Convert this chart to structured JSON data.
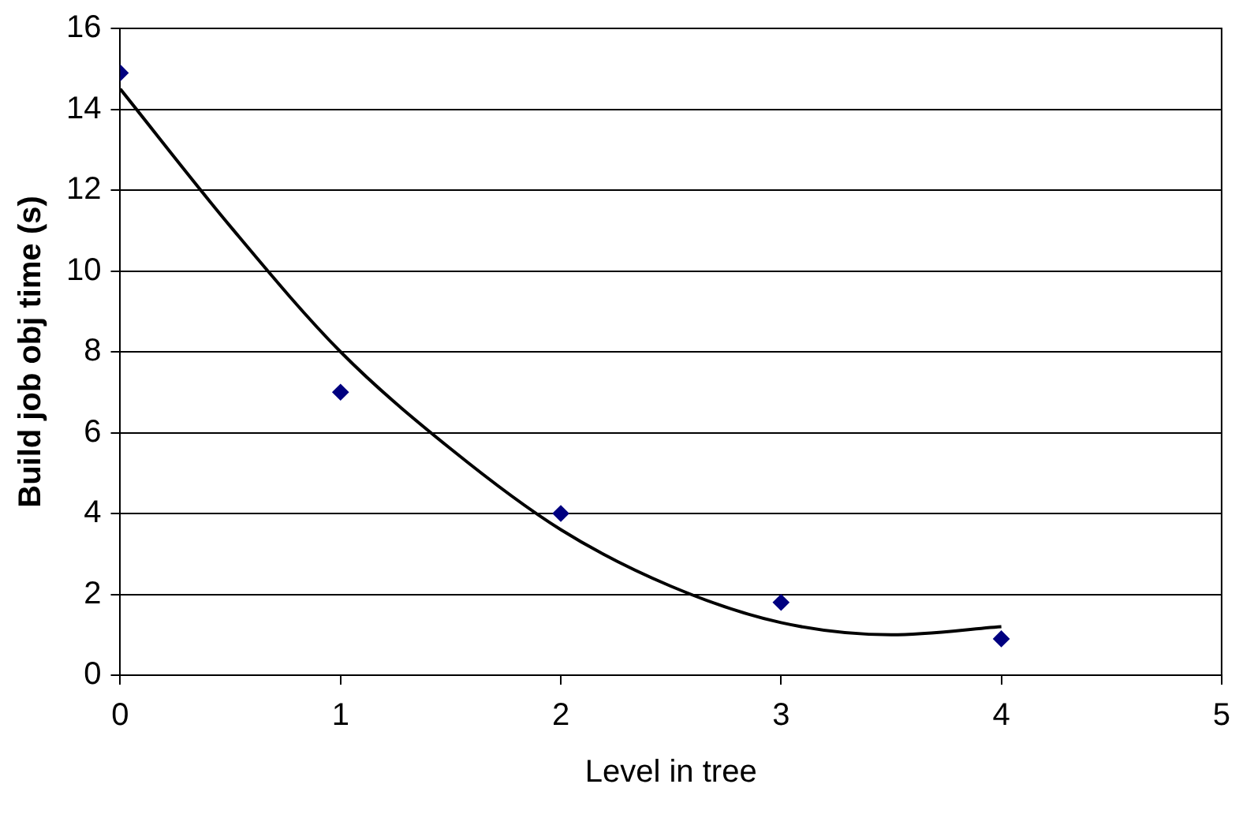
{
  "chart_data": {
    "type": "scatter",
    "xlabel": "Level in tree",
    "ylabel": "Build job obj time (s)",
    "series": [
      {
        "color": "#000080",
        "marker": "diamond",
        "x": [
          0,
          1,
          2,
          3,
          4
        ],
        "values": [
          14.9,
          7.0,
          4.0,
          1.8,
          0.9
        ]
      },
      {
        "type": "line",
        "color": "#000000",
        "marker": "none",
        "x": [
          0,
          0.5,
          1,
          1.5,
          2,
          2.5,
          3,
          3.5,
          4
        ],
        "values": [
          14.5,
          11.1,
          8.0,
          5.6,
          3.6,
          2.2,
          1.3,
          1.0,
          1.2
        ]
      }
    ],
    "xlim": [
      0,
      5
    ],
    "xticks": [
      0,
      1,
      2,
      3,
      4,
      5
    ],
    "ylim": [
      0,
      16
    ],
    "yticks": [
      0,
      2,
      4,
      6,
      8,
      10,
      12,
      14,
      16
    ],
    "grid": "y",
    "legend": false
  }
}
